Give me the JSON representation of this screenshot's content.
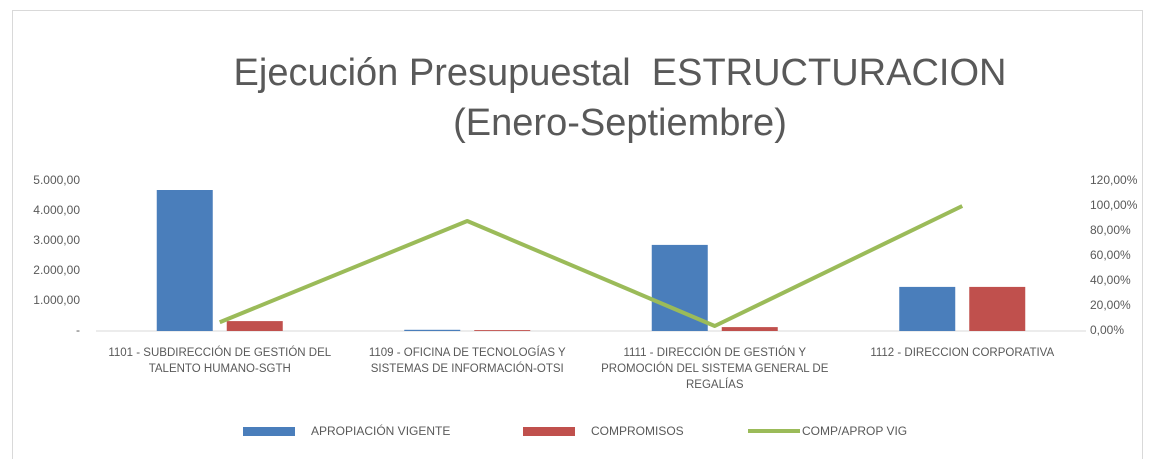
{
  "chart_data": {
    "type": "bar_line",
    "title": "Ejecución Presupuestal  ESTRUCTURACION\n(Enero-Septiembre)",
    "categories": [
      "1101 - SUBDIRECCIÓN DE GESTIÓN DEL TALENTO HUMANO-SGTH",
      "1109 - OFICINA DE TECNOLOGÍAS Y SISTEMAS DE INFORMACIÓN-OTSI",
      "1111 - DIRECCIÓN DE GESTIÓN Y PROMOCIÓN DEL SISTEMA GENERAL DE REGALÍAS",
      "1112 - DIRECCION CORPORATIVA"
    ],
    "series": [
      {
        "name": "APROPIACIÓN VIGENTE",
        "color": "#4a7ebb",
        "type": "bar",
        "values": [
          4700,
          40,
          2870,
          1470
        ]
      },
      {
        "name": "COMPROMISOS",
        "color": "#c0504d",
        "type": "bar",
        "values": [
          330,
          30,
          130,
          1470
        ]
      },
      {
        "name": "COMP/APROP VIG",
        "color": "#9bbb59",
        "type": "line",
        "axis": "y2",
        "values": [
          7,
          88,
          4,
          100
        ]
      }
    ],
    "ylim": [
      0,
      5000
    ],
    "yticks": [
      {
        "value": 0,
        "label": "-"
      },
      {
        "value": 1000,
        "label": "1.000,00"
      },
      {
        "value": 2000,
        "label": "2.000,00"
      },
      {
        "value": 3000,
        "label": "3.000,00"
      },
      {
        "value": 4000,
        "label": "4.000,00"
      },
      {
        "value": 5000,
        "label": "5.000,00"
      }
    ],
    "y2lim": [
      0,
      120
    ],
    "y2ticks": [
      {
        "value": 0,
        "label": "0,00%"
      },
      {
        "value": 20,
        "label": "20,00%"
      },
      {
        "value": 40,
        "label": "40,00%"
      },
      {
        "value": 60,
        "label": "60,00%"
      },
      {
        "value": 80,
        "label": "80,00%"
      },
      {
        "value": 100,
        "label": "100,00%"
      },
      {
        "value": 120,
        "label": "120,00%"
      }
    ],
    "legend": "bottom"
  }
}
